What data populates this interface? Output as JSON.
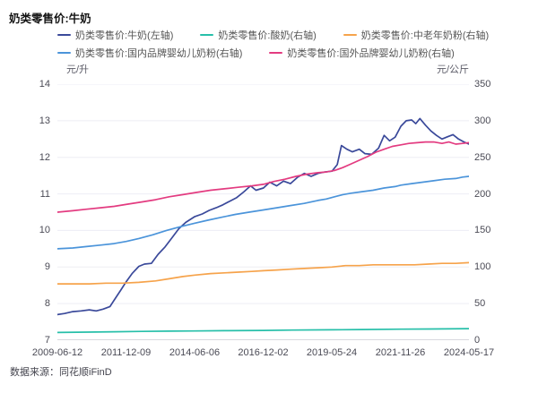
{
  "title": "奶类零售价:牛奶",
  "source": "数据来源：同花顺iFinD",
  "colors": {
    "milk": "#3a499a",
    "yogurt": "#27bfa9",
    "elder_powder": "#f6a34b",
    "domestic_infant": "#4b94da",
    "foreign_infant": "#e33b80",
    "grid": "#ededf4",
    "axis_line": "#b2b2bc",
    "tick_text": "#4a4a55"
  },
  "chart_data": {
    "type": "line",
    "title": "奶类零售价:牛奶",
    "grid": true,
    "legend_position": "top",
    "left_axis": {
      "unit": "元/升",
      "min": 7,
      "max": 14,
      "ticks": [
        14,
        13,
        12,
        11,
        10,
        9,
        8,
        7
      ]
    },
    "right_axis": {
      "unit": "元/公斤",
      "min": 0,
      "max": 350,
      "ticks": [
        350,
        300,
        250,
        200,
        150,
        100,
        50,
        0
      ]
    },
    "x_axis": {
      "start_year": 2009.44,
      "end_year": 2024.38,
      "tick_labels": [
        "2009-06-12",
        "2011-12-09",
        "2014-06-06",
        "2016-12-02",
        "2019-05-24",
        "2021-11-26",
        "2024-05-17"
      ]
    },
    "series": [
      {
        "name": "奶类零售价:牛奶(左轴)",
        "axis": "left",
        "unit": "元/升",
        "color": "#3a499a",
        "points": [
          [
            2009.44,
            7.7
          ],
          [
            2009.7,
            7.73
          ],
          [
            2010.0,
            7.78
          ],
          [
            2010.3,
            7.8
          ],
          [
            2010.6,
            7.83
          ],
          [
            2010.85,
            7.8
          ],
          [
            2011.1,
            7.85
          ],
          [
            2011.35,
            7.92
          ],
          [
            2011.55,
            8.15
          ],
          [
            2011.75,
            8.38
          ],
          [
            2011.94,
            8.6
          ],
          [
            2012.15,
            8.82
          ],
          [
            2012.4,
            9.02
          ],
          [
            2012.6,
            9.08
          ],
          [
            2012.85,
            9.1
          ],
          [
            2013.1,
            9.35
          ],
          [
            2013.35,
            9.55
          ],
          [
            2013.6,
            9.8
          ],
          [
            2013.85,
            10.05
          ],
          [
            2014.1,
            10.22
          ],
          [
            2014.43,
            10.38
          ],
          [
            2014.7,
            10.45
          ],
          [
            2014.95,
            10.55
          ],
          [
            2015.2,
            10.62
          ],
          [
            2015.45,
            10.7
          ],
          [
            2015.7,
            10.8
          ],
          [
            2015.95,
            10.9
          ],
          [
            2016.2,
            11.05
          ],
          [
            2016.45,
            11.22
          ],
          [
            2016.65,
            11.1
          ],
          [
            2016.92,
            11.16
          ],
          [
            2017.15,
            11.32
          ],
          [
            2017.4,
            11.22
          ],
          [
            2017.65,
            11.35
          ],
          [
            2017.9,
            11.28
          ],
          [
            2018.15,
            11.45
          ],
          [
            2018.4,
            11.56
          ],
          [
            2018.65,
            11.48
          ],
          [
            2018.9,
            11.56
          ],
          [
            2019.15,
            11.6
          ],
          [
            2019.41,
            11.62
          ],
          [
            2019.6,
            11.8
          ],
          [
            2019.75,
            12.32
          ],
          [
            2019.95,
            12.22
          ],
          [
            2020.15,
            12.15
          ],
          [
            2020.4,
            12.22
          ],
          [
            2020.6,
            12.1
          ],
          [
            2020.85,
            12.08
          ],
          [
            2021.1,
            12.25
          ],
          [
            2021.3,
            12.6
          ],
          [
            2021.5,
            12.45
          ],
          [
            2021.7,
            12.55
          ],
          [
            2021.91,
            12.85
          ],
          [
            2022.1,
            13.0
          ],
          [
            2022.3,
            13.02
          ],
          [
            2022.45,
            12.92
          ],
          [
            2022.6,
            13.06
          ],
          [
            2022.8,
            12.88
          ],
          [
            2023.0,
            12.72
          ],
          [
            2023.2,
            12.6
          ],
          [
            2023.4,
            12.5
          ],
          [
            2023.6,
            12.56
          ],
          [
            2023.8,
            12.62
          ],
          [
            2024.0,
            12.5
          ],
          [
            2024.2,
            12.42
          ],
          [
            2024.38,
            12.36
          ]
        ]
      },
      {
        "name": "奶类零售价:酸奶(右轴)",
        "axis": "right",
        "unit": "元/公斤",
        "color": "#27bfa9",
        "points": [
          [
            2009.44,
            10.5
          ],
          [
            2010.5,
            11
          ],
          [
            2011.5,
            11.5
          ],
          [
            2012.5,
            12
          ],
          [
            2013.5,
            12.3
          ],
          [
            2014.43,
            12.6
          ],
          [
            2015.5,
            13
          ],
          [
            2016.92,
            13.4
          ],
          [
            2018.0,
            13.8
          ],
          [
            2019.41,
            14.2
          ],
          [
            2020.5,
            14.6
          ],
          [
            2021.91,
            15
          ],
          [
            2023.0,
            15.3
          ],
          [
            2024.38,
            15.8
          ]
        ]
      },
      {
        "name": "奶类零售价:中老年奶粉(右轴)",
        "axis": "right",
        "unit": "元/公斤",
        "color": "#f6a34b",
        "points": [
          [
            2009.44,
            77
          ],
          [
            2010.0,
            77
          ],
          [
            2010.6,
            77
          ],
          [
            2011.2,
            78
          ],
          [
            2011.8,
            78
          ],
          [
            2012.4,
            79
          ],
          [
            2013.0,
            81
          ],
          [
            2013.5,
            84
          ],
          [
            2014.0,
            87
          ],
          [
            2014.43,
            89
          ],
          [
            2015.0,
            91
          ],
          [
            2015.5,
            92
          ],
          [
            2016.0,
            93
          ],
          [
            2016.5,
            94
          ],
          [
            2016.92,
            95
          ],
          [
            2017.4,
            96
          ],
          [
            2017.9,
            97
          ],
          [
            2018.4,
            98
          ],
          [
            2018.9,
            99
          ],
          [
            2019.4,
            100
          ],
          [
            2019.9,
            102
          ],
          [
            2020.4,
            102
          ],
          [
            2020.9,
            103
          ],
          [
            2021.4,
            103
          ],
          [
            2021.91,
            103
          ],
          [
            2022.4,
            103
          ],
          [
            2022.9,
            104
          ],
          [
            2023.4,
            105
          ],
          [
            2023.9,
            105
          ],
          [
            2024.38,
            106
          ]
        ]
      },
      {
        "name": "奶类零售价:国内品牌婴幼儿奶粉(右轴)",
        "axis": "right",
        "unit": "元/公斤",
        "color": "#4b94da",
        "points": [
          [
            2009.44,
            125
          ],
          [
            2010.0,
            126
          ],
          [
            2010.5,
            128
          ],
          [
            2011.0,
            130
          ],
          [
            2011.5,
            132
          ],
          [
            2011.94,
            135
          ],
          [
            2012.4,
            139
          ],
          [
            2012.9,
            144
          ],
          [
            2013.4,
            150
          ],
          [
            2013.9,
            155
          ],
          [
            2014.43,
            160
          ],
          [
            2014.9,
            164
          ],
          [
            2015.4,
            168
          ],
          [
            2015.9,
            172
          ],
          [
            2016.4,
            175
          ],
          [
            2016.92,
            178
          ],
          [
            2017.4,
            181
          ],
          [
            2017.9,
            184
          ],
          [
            2018.4,
            187
          ],
          [
            2018.9,
            191
          ],
          [
            2019.2,
            193
          ],
          [
            2019.5,
            196
          ],
          [
            2019.8,
            199
          ],
          [
            2020.1,
            201
          ],
          [
            2020.5,
            203
          ],
          [
            2020.9,
            205
          ],
          [
            2021.3,
            208
          ],
          [
            2021.7,
            210
          ],
          [
            2021.91,
            212
          ],
          [
            2022.3,
            214
          ],
          [
            2022.7,
            216
          ],
          [
            2023.1,
            218
          ],
          [
            2023.5,
            220
          ],
          [
            2023.9,
            221
          ],
          [
            2024.15,
            223
          ],
          [
            2024.38,
            224
          ]
        ]
      },
      {
        "name": "奶类零售价:国外品牌婴幼儿奶粉(右轴)",
        "axis": "right",
        "unit": "元/公斤",
        "color": "#e33b80",
        "points": [
          [
            2009.44,
            175
          ],
          [
            2010.0,
            177
          ],
          [
            2010.5,
            179
          ],
          [
            2011.0,
            181
          ],
          [
            2011.5,
            183
          ],
          [
            2012.0,
            186
          ],
          [
            2012.5,
            189
          ],
          [
            2013.0,
            192
          ],
          [
            2013.5,
            196
          ],
          [
            2014.0,
            199
          ],
          [
            2014.5,
            202
          ],
          [
            2015.0,
            205
          ],
          [
            2015.5,
            207
          ],
          [
            2016.0,
            209
          ],
          [
            2016.5,
            211
          ],
          [
            2016.92,
            213
          ],
          [
            2017.3,
            217
          ],
          [
            2017.7,
            220
          ],
          [
            2018.1,
            224
          ],
          [
            2018.5,
            227
          ],
          [
            2018.9,
            229
          ],
          [
            2019.2,
            230
          ],
          [
            2019.5,
            232
          ],
          [
            2019.8,
            236
          ],
          [
            2020.1,
            241
          ],
          [
            2020.4,
            246
          ],
          [
            2020.7,
            251
          ],
          [
            2021.0,
            257
          ],
          [
            2021.3,
            261
          ],
          [
            2021.6,
            265
          ],
          [
            2021.91,
            267
          ],
          [
            2022.2,
            269
          ],
          [
            2022.5,
            270
          ],
          [
            2022.8,
            271
          ],
          [
            2023.1,
            271
          ],
          [
            2023.4,
            269
          ],
          [
            2023.65,
            271
          ],
          [
            2023.9,
            268
          ],
          [
            2024.15,
            269
          ],
          [
            2024.38,
            270
          ]
        ]
      }
    ]
  }
}
